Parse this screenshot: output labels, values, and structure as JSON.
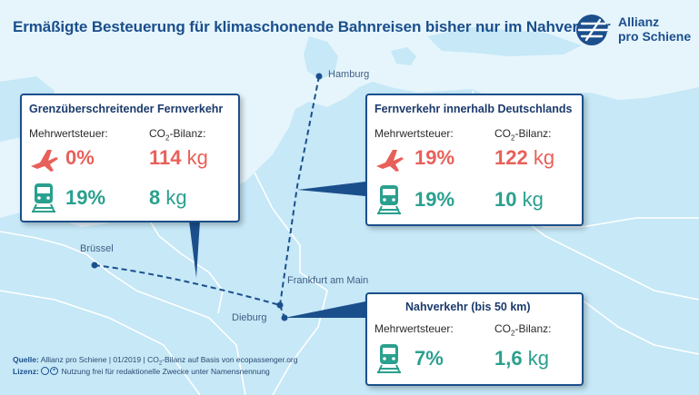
{
  "title": "Ermäßigte Besteuerung für klimaschonende Bahnreisen bisher nur im Nahverkehr",
  "logo": {
    "line1": "Allianz",
    "line2": "pro Schiene"
  },
  "cities": {
    "hamburg": "Hamburg",
    "bruessel": "Brüssel",
    "frankfurt": "Frankfurt am Main",
    "dieburg": "Dieburg"
  },
  "boxes": {
    "cross_border": {
      "title": "Grenzüberschreitender Fernverkehr",
      "vat_label": "Mehrwertsteuer:",
      "co2_label_prefix": "CO",
      "co2_label_sub": "2",
      "co2_label_suffix": "-Bilanz:",
      "plane_vat": "0%",
      "plane_co2": "114",
      "train_vat": "19%",
      "train_co2": "8",
      "unit": "kg"
    },
    "domestic": {
      "title": "Fernverkehr innerhalb Deutschlands",
      "vat_label": "Mehrwertsteuer:",
      "co2_label_prefix": "CO",
      "co2_label_sub": "2",
      "co2_label_suffix": "-Bilanz:",
      "plane_vat": "19%",
      "plane_co2": "122",
      "train_vat": "19%",
      "train_co2": "10",
      "unit": "kg"
    },
    "local": {
      "title": "Nahverkehr (bis 50 km)",
      "vat_label": "Mehrwertsteuer:",
      "co2_label_prefix": "CO",
      "co2_label_sub": "2",
      "co2_label_suffix": "-Bilanz:",
      "train_vat": "7%",
      "train_co2": "1,6",
      "unit": "kg"
    }
  },
  "footer": {
    "source_label": "Quelle:",
    "source_text_a": "Allianz pro Schiene | 01/2019 | CO",
    "source_text_sub": "2",
    "source_text_b": "-Bilanz auf Basis von ecopassenger.org",
    "license_label": "Lizenz:",
    "license_text": "Nutzung frei für redaktionelle Zwecke unter Namensnennung"
  },
  "colors": {
    "brand": "#1b4f8c",
    "plane": "#e8605a",
    "train": "#2aa08e",
    "sea": "#e6f5fc",
    "land": "#c8e9f7"
  },
  "icons": [
    "plane-icon",
    "train-icon",
    "creative-commons-icon"
  ]
}
